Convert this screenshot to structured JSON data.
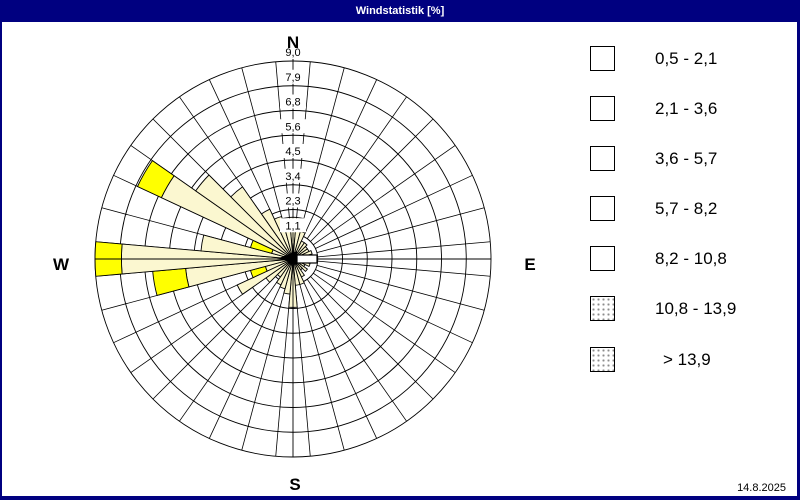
{
  "window": {
    "title": "Windstatistik [%]",
    "date": "14.8.2025",
    "titlebar_color": "#000080",
    "background_color": "#ffffff"
  },
  "compass": {
    "n": "N",
    "e": "E",
    "s": "S",
    "w": "W"
  },
  "chart_data": {
    "type": "windrose",
    "unit": "%",
    "title": "Windstatistik [%]",
    "grid": {
      "rings": 8,
      "sector_width_deg": 10,
      "sectors_total": 36,
      "line_color": "#000000"
    },
    "radial_max": 9.0,
    "radial_ticks": [
      "1,1",
      "2,3",
      "3,4",
      "4,5",
      "5,6",
      "6,8",
      "7,9",
      "9,0"
    ],
    "speed_classes": [
      {
        "label": "0,5 - 2,1",
        "color": "#FBF7D0"
      },
      {
        "label": "2,1 - 3,6",
        "color": "#FFFF00"
      },
      {
        "label": "3,6 - 5,7",
        "color": "#00E000"
      },
      {
        "label": "5,7 - 8,2",
        "color": "#F07D1A"
      },
      {
        "label": "8,2 - 10,8",
        "color": "#FA0A0A"
      },
      {
        "label": "10,8 - 13,9",
        "color": "#800080"
      },
      {
        "label": "> 13,9",
        "color": "#404040"
      }
    ],
    "sectors": [
      {
        "dir": 0,
        "values": [
          1.9,
          0
        ]
      },
      {
        "dir": 10,
        "values": [
          1.9,
          0
        ]
      },
      {
        "dir": 20,
        "values": [
          1.3,
          0
        ]
      },
      {
        "dir": 30,
        "values": [
          0.9,
          0
        ]
      },
      {
        "dir": 40,
        "values": [
          0.9,
          0
        ]
      },
      {
        "dir": 50,
        "values": [
          0.8,
          0
        ]
      },
      {
        "dir": 60,
        "values": [
          0.8,
          0
        ]
      },
      {
        "dir": 70,
        "values": [
          0.9,
          0
        ]
      },
      {
        "dir": 80,
        "values": [
          0.7,
          0
        ]
      },
      {
        "dir": 90,
        "values": [
          0.8,
          0
        ]
      },
      {
        "dir": 100,
        "values": [
          0.8,
          0
        ]
      },
      {
        "dir": 110,
        "values": [
          0.8,
          0
        ]
      },
      {
        "dir": 120,
        "values": [
          0.6,
          0
        ]
      },
      {
        "dir": 130,
        "values": [
          0.8,
          0
        ]
      },
      {
        "dir": 140,
        "values": [
          0.6,
          0
        ]
      },
      {
        "dir": 150,
        "values": [
          0.9,
          0
        ]
      },
      {
        "dir": 160,
        "values": [
          1.2,
          0
        ]
      },
      {
        "dir": 170,
        "values": [
          1.2,
          0
        ]
      },
      {
        "dir": 180,
        "values": [
          2.2,
          0
        ]
      },
      {
        "dir": 190,
        "values": [
          1.6,
          0
        ]
      },
      {
        "dir": 200,
        "values": [
          1.4,
          0
        ]
      },
      {
        "dir": 210,
        "values": [
          1.3,
          0
        ]
      },
      {
        "dir": 220,
        "values": [
          1.0,
          0
        ]
      },
      {
        "dir": 230,
        "values": [
          1.5,
          0
        ]
      },
      {
        "dir": 240,
        "values": [
          2.8,
          0
        ]
      },
      {
        "dir": 250,
        "values": [
          1.3,
          0.7
        ]
      },
      {
        "dir": 260,
        "values": [
          4.9,
          1.5
        ]
      },
      {
        "dir": 270,
        "values": [
          7.8,
          1.2
        ]
      },
      {
        "dir": 280,
        "values": [
          4.2,
          0
        ]
      },
      {
        "dir": 290,
        "values": [
          1.0,
          1.0
        ]
      },
      {
        "dir": 300,
        "values": [
          6.6,
          1.2
        ]
      },
      {
        "dir": 310,
        "values": [
          5.4,
          0
        ]
      },
      {
        "dir": 320,
        "values": [
          4.0,
          0
        ]
      },
      {
        "dir": 330,
        "values": [
          2.5,
          0
        ]
      },
      {
        "dir": 340,
        "values": [
          2.0,
          0
        ]
      },
      {
        "dir": 350,
        "values": [
          1.9,
          0
        ]
      }
    ],
    "center_marker": "wind-direction-arrow-pointing-west"
  },
  "legend": {
    "position": "right"
  }
}
